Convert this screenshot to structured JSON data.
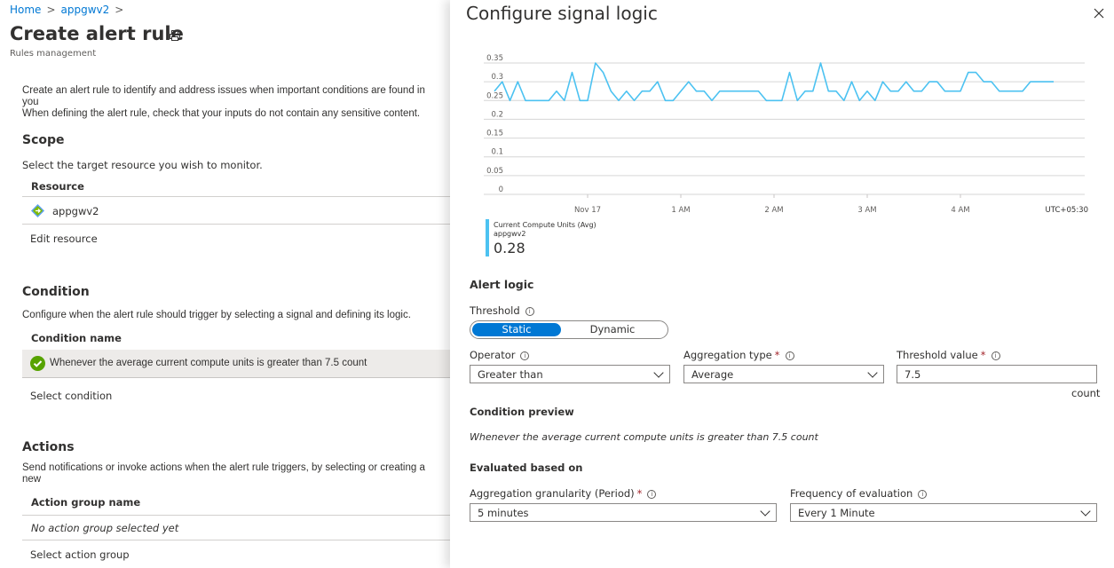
{
  "breadcrumb": {
    "items": [
      "Home",
      "appgwv2"
    ]
  },
  "page": {
    "title": "Create alert rule",
    "subtitle": "Rules management",
    "intro_line1": "Create an alert rule to identify and address issues when important conditions are found in you",
    "intro_line2": "When defining the alert rule, check that your inputs do not contain any sensitive content."
  },
  "scope": {
    "heading": "Scope",
    "description": "Select the target resource you wish to monitor.",
    "column": "Resource",
    "resource": "appgwv2",
    "edit_link": "Edit resource"
  },
  "condition": {
    "heading": "Condition",
    "description": "Configure when the alert rule should trigger by selecting a signal and defining its logic.",
    "column": "Condition name",
    "item": "Whenever the average current compute units is greater than 7.5 count",
    "select_link": "Select condition"
  },
  "actions": {
    "heading": "Actions",
    "description": "Send notifications or invoke actions when the alert rule triggers, by selecting or creating a new",
    "column": "Action group name",
    "empty": "No action group selected yet",
    "select_link": "Select action group"
  },
  "panel": {
    "title": "Configure signal logic",
    "legend": {
      "metric": "Current Compute Units (Avg)",
      "resource": "appgwv2",
      "value": "0.28",
      "color": "#4cc2f1"
    },
    "alert_logic": "Alert logic",
    "threshold_label": "Threshold",
    "threshold_options": [
      "Static",
      "Dynamic"
    ],
    "threshold_selected": "Static",
    "operator": {
      "label": "Operator",
      "value": "Greater than"
    },
    "aggregation": {
      "label": "Aggregation type",
      "value": "Average"
    },
    "threshold_value": {
      "label": "Threshold value",
      "value": "7.5",
      "unit": "count"
    },
    "preview_heading": "Condition preview",
    "preview_text": "Whenever the average current compute units is greater than 7.5 count",
    "evaluated_heading": "Evaluated based on",
    "granularity": {
      "label": "Aggregation granularity (Period)",
      "value": "5 minutes"
    },
    "frequency": {
      "label": "Frequency of evaluation",
      "value": "Every 1 Minute"
    }
  },
  "chart_data": {
    "type": "line",
    "ylim": [
      0,
      0.35
    ],
    "yticks": [
      "0",
      "0.05",
      "0.1",
      "0.15",
      "0.2",
      "0.25",
      "0.3",
      "0.35"
    ],
    "xtick_labels": [
      "Nov 17",
      "1 AM",
      "2 AM",
      "3 AM",
      "4 AM"
    ],
    "timezone": "UTC+05:30",
    "grid": true,
    "series": [
      {
        "name": "Current Compute Units (Avg)",
        "color": "#4cc2f1",
        "x": [
          "23:00",
          "23:05",
          "23:10",
          "23:15",
          "23:20",
          "23:25",
          "23:30",
          "23:35",
          "23:40",
          "23:45",
          "23:50",
          "23:55",
          "00:00",
          "00:05",
          "00:10",
          "00:15",
          "00:20",
          "00:25",
          "00:30",
          "00:35",
          "00:40",
          "00:45",
          "00:50",
          "00:55",
          "01:00",
          "01:05",
          "01:10",
          "01:15",
          "01:20",
          "01:25",
          "01:30",
          "01:35",
          "01:40",
          "01:45",
          "01:50",
          "01:55",
          "02:00",
          "02:05",
          "02:10",
          "02:15",
          "02:20",
          "02:25",
          "02:30",
          "02:35",
          "02:40",
          "02:45",
          "02:50",
          "02:55",
          "03:00",
          "03:05",
          "03:10",
          "03:15",
          "03:20",
          "03:25",
          "03:30",
          "03:35",
          "03:40",
          "03:45",
          "03:50",
          "03:55",
          "04:00",
          "04:05",
          "04:10",
          "04:15",
          "04:20",
          "04:25",
          "04:30",
          "04:35",
          "04:40",
          "04:45",
          "04:50",
          "04:55",
          "05:00"
        ],
        "values": [
          0.275,
          0.3,
          0.25,
          0.3,
          0.25,
          0.25,
          0.25,
          0.25,
          0.275,
          0.25,
          0.325,
          0.25,
          0.25,
          0.35,
          0.325,
          0.275,
          0.25,
          0.275,
          0.25,
          0.275,
          0.275,
          0.3,
          0.25,
          0.25,
          0.275,
          0.3,
          0.275,
          0.275,
          0.25,
          0.275,
          0.275,
          0.275,
          0.275,
          0.275,
          0.275,
          0.25,
          0.25,
          0.25,
          0.325,
          0.25,
          0.275,
          0.275,
          0.35,
          0.275,
          0.275,
          0.25,
          0.3,
          0.25,
          0.275,
          0.25,
          0.3,
          0.275,
          0.275,
          0.3,
          0.275,
          0.275,
          0.3,
          0.3,
          0.275,
          0.275,
          0.275,
          0.325,
          0.325,
          0.3,
          0.3,
          0.275,
          0.275,
          0.275,
          0.275,
          0.3,
          0.3,
          0.3,
          0.3
        ]
      }
    ]
  }
}
